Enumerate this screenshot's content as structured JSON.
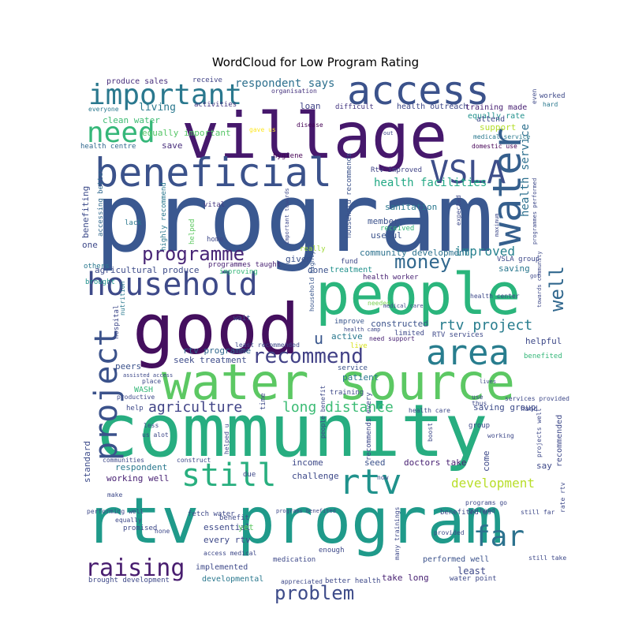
{
  "chart_data": {
    "type": "wordcloud",
    "title": "WordCloud for Low Program Rating",
    "background": "#ffffff",
    "colormap": "viridis",
    "words": [
      {
        "text": "program",
        "size": 120,
        "color": "#3a5890"
      },
      {
        "text": "community",
        "size": 92,
        "color": "#27ad80"
      },
      {
        "text": "good",
        "size": 88,
        "color": "#440f5e"
      },
      {
        "text": "village",
        "size": 80,
        "color": "#46186c"
      },
      {
        "text": "rtv program",
        "size": 80,
        "color": "#1f9a8a"
      },
      {
        "text": "people",
        "size": 72,
        "color": "#2ab57c"
      },
      {
        "text": "water source",
        "size": 62,
        "color": "#5cc863"
      },
      {
        "text": "beneficial",
        "size": 50,
        "color": "#3b528b"
      },
      {
        "text": "access",
        "size": 50,
        "color": "#3b528b"
      },
      {
        "text": "water",
        "size": 50,
        "color": "#355f8d"
      },
      {
        "text": "household",
        "size": 40,
        "color": "#3e4a89"
      },
      {
        "text": "area",
        "size": 44,
        "color": "#287d8e"
      },
      {
        "text": "important",
        "size": 36,
        "color": "#2a788e"
      },
      {
        "text": "need",
        "size": 36,
        "color": "#35b779"
      },
      {
        "text": "VSLA",
        "size": 40,
        "color": "#3d4e8a"
      },
      {
        "text": "project",
        "size": 40,
        "color": "#3b528b"
      },
      {
        "text": "still",
        "size": 40,
        "color": "#29af7f"
      },
      {
        "text": "rtv",
        "size": 44,
        "color": "#20928c"
      },
      {
        "text": "far",
        "size": 36,
        "color": "#2c728e"
      },
      {
        "text": "raising",
        "size": 30,
        "color": "#481d6f"
      },
      {
        "text": "problem",
        "size": 24,
        "color": "#3e4c8a"
      },
      {
        "text": "recommend",
        "size": 26,
        "color": "#424186"
      },
      {
        "text": "programme",
        "size": 24,
        "color": "#482576"
      },
      {
        "text": "money",
        "size": 24,
        "color": "#31688e"
      },
      {
        "text": "well",
        "size": 24,
        "color": "#31688e"
      },
      {
        "text": "agriculture",
        "size": 18,
        "color": "#414487"
      },
      {
        "text": "long distance",
        "size": 18,
        "color": "#3cbc75"
      },
      {
        "text": "rtv project",
        "size": 18,
        "color": "#287d8e"
      },
      {
        "text": "development",
        "size": 16,
        "color": "#b8de29"
      },
      {
        "text": "health service",
        "size": 14,
        "color": "#2d708e"
      },
      {
        "text": "health facilities",
        "size": 14,
        "color": "#22a884"
      },
      {
        "text": "improved",
        "size": 16,
        "color": "#26818e"
      },
      {
        "text": "respondent says",
        "size": 14,
        "color": "#2d708e"
      },
      {
        "text": "living",
        "size": 13,
        "color": "#2a788e"
      },
      {
        "text": "clean water",
        "size": 11,
        "color": "#3fbc73"
      },
      {
        "text": "equally important",
        "size": 11,
        "color": "#56c667"
      },
      {
        "text": "u",
        "size": 20,
        "color": "#39568c"
      },
      {
        "text": "produce sales",
        "size": 10,
        "color": "#472d7b"
      },
      {
        "text": "receive",
        "size": 9,
        "color": "#414487"
      },
      {
        "text": "organisation",
        "size": 8,
        "color": "#46337e"
      },
      {
        "text": "loan",
        "size": 11,
        "color": "#414487"
      },
      {
        "text": "difficult",
        "size": 9,
        "color": "#453781"
      },
      {
        "text": "health outreach",
        "size": 10,
        "color": "#3e4989"
      },
      {
        "text": "training made",
        "size": 10,
        "color": "#482173"
      },
      {
        "text": "equally rate",
        "size": 10,
        "color": "#21918c"
      },
      {
        "text": "support",
        "size": 11,
        "color": "#b5de2b"
      },
      {
        "text": "worked",
        "size": 9,
        "color": "#3e4989"
      },
      {
        "text": "hard",
        "size": 8,
        "color": "#2a788e"
      },
      {
        "text": "everyone",
        "size": 8,
        "color": "#2a788e"
      },
      {
        "text": "activities",
        "size": 9,
        "color": "#453781"
      },
      {
        "text": "gave us",
        "size": 8,
        "color": "#fde725"
      },
      {
        "text": "disease",
        "size": 8,
        "color": "#440154"
      },
      {
        "text": "medical service",
        "size": 8,
        "color": "#2a788e"
      },
      {
        "text": "domestic use",
        "size": 8,
        "color": "#440154"
      },
      {
        "text": "health centre",
        "size": 9,
        "color": "#31688e"
      },
      {
        "text": "save",
        "size": 11,
        "color": "#472d7b"
      },
      {
        "text": "hygiene",
        "size": 9,
        "color": "#440154"
      },
      {
        "text": "Rtv improved",
        "size": 9,
        "color": "#414487"
      },
      {
        "text": "household recommends",
        "size": 9,
        "color": "#3b528b"
      },
      {
        "text": "sanitation",
        "size": 11,
        "color": "#2a788e"
      },
      {
        "text": "member",
        "size": 11,
        "color": "#3b528b"
      },
      {
        "text": "received",
        "size": 9,
        "color": "#35b779"
      },
      {
        "text": "useful",
        "size": 11,
        "color": "#3b528b"
      },
      {
        "text": "community development",
        "size": 11,
        "color": "#2c728e"
      },
      {
        "text": "benefiting",
        "size": 11,
        "color": "#3e4c8a"
      },
      {
        "text": "accessing better",
        "size": 9,
        "color": "#31688e"
      },
      {
        "text": "highly recommend",
        "size": 9,
        "color": "#2a788e"
      },
      {
        "text": "helped",
        "size": 9,
        "color": "#5ec962"
      },
      {
        "text": "vital",
        "size": 9,
        "color": "#453781"
      },
      {
        "text": "lack",
        "size": 9,
        "color": "#2a788e"
      },
      {
        "text": "home",
        "size": 9,
        "color": "#3e4989"
      },
      {
        "text": "one",
        "size": 11,
        "color": "#3e4989"
      },
      {
        "text": "programmes taught",
        "size": 9,
        "color": "#482173"
      },
      {
        "text": "improving",
        "size": 9,
        "color": "#35b779"
      },
      {
        "text": "really",
        "size": 9,
        "color": "#a0da39"
      },
      {
        "text": "agricultural produce",
        "size": 11,
        "color": "#3e4c8a"
      },
      {
        "text": "given",
        "size": 11,
        "color": "#3b528b"
      },
      {
        "text": "done",
        "size": 11,
        "color": "#3b528b"
      },
      {
        "text": "fund",
        "size": 9,
        "color": "#3e4989"
      },
      {
        "text": "treatment",
        "size": 10,
        "color": "#21918c"
      },
      {
        "text": "saving",
        "size": 11,
        "color": "#2a788e"
      },
      {
        "text": "VSLA group",
        "size": 9,
        "color": "#3e4989"
      },
      {
        "text": "health worker",
        "size": 9,
        "color": "#482173"
      },
      {
        "text": "health center",
        "size": 8,
        "color": "#3e4989"
      },
      {
        "text": "others",
        "size": 9,
        "color": "#2a788e"
      },
      {
        "text": "brought",
        "size": 9,
        "color": "#21918c"
      },
      {
        "text": "nutrition",
        "size": 8,
        "color": "#2a788e"
      },
      {
        "text": "hospital",
        "size": 9,
        "color": "#3e4989"
      },
      {
        "text": "wait",
        "size": 9,
        "color": "#3b528b"
      },
      {
        "text": "household highly",
        "size": 8,
        "color": "#39568c"
      },
      {
        "text": "improve",
        "size": 9,
        "color": "#39568c"
      },
      {
        "text": "constructed",
        "size": 11,
        "color": "#3b528b"
      },
      {
        "text": "needed",
        "size": 8,
        "color": "#7ad151"
      },
      {
        "text": "active",
        "size": 11,
        "color": "#2a788e"
      },
      {
        "text": "limited",
        "size": 9,
        "color": "#3e4989"
      },
      {
        "text": "RTV services",
        "size": 9,
        "color": "#3e4989"
      },
      {
        "text": "need support",
        "size": 8,
        "color": "#482173"
      },
      {
        "text": "live",
        "size": 9,
        "color": "#d8e219"
      },
      {
        "text": "helpful",
        "size": 11,
        "color": "#3e4989"
      },
      {
        "text": "benefited",
        "size": 9,
        "color": "#35b779"
      },
      {
        "text": "rtv programme",
        "size": 11,
        "color": "#31688e"
      },
      {
        "text": "seek treatment",
        "size": 11,
        "color": "#3e4c8a"
      },
      {
        "text": "peers",
        "size": 11,
        "color": "#3b528b"
      },
      {
        "text": "patient",
        "size": 11,
        "color": "#2a788e"
      },
      {
        "text": "service",
        "size": 9,
        "color": "#3b528b"
      },
      {
        "text": "training",
        "size": 9,
        "color": "#3e4989"
      },
      {
        "text": "WASH",
        "size": 10,
        "color": "#35b779"
      },
      {
        "text": "productive",
        "size": 8,
        "color": "#3e4989"
      },
      {
        "text": "help",
        "size": 9,
        "color": "#3e4989"
      },
      {
        "text": "saving group",
        "size": 11,
        "color": "#3e4c8a"
      },
      {
        "text": "hand",
        "size": 9,
        "color": "#3e4989"
      },
      {
        "text": "standard",
        "size": 11,
        "color": "#3e4c8a"
      },
      {
        "text": "respondent",
        "size": 11,
        "color": "#2a788e"
      },
      {
        "text": "working well",
        "size": 11,
        "color": "#482173"
      },
      {
        "text": "income",
        "size": 11,
        "color": "#3e4989"
      },
      {
        "text": "seed",
        "size": 11,
        "color": "#3b528b"
      },
      {
        "text": "doctors take",
        "size": 11,
        "color": "#482173"
      },
      {
        "text": "come",
        "size": 11,
        "color": "#3e4989"
      },
      {
        "text": "challenge",
        "size": 11,
        "color": "#3e4989"
      },
      {
        "text": "say",
        "size": 11,
        "color": "#3e4989"
      },
      {
        "text": "recommended",
        "size": 10,
        "color": "#3e4989"
      },
      {
        "text": "essential",
        "size": 11,
        "color": "#3e4989"
      },
      {
        "text": "yet",
        "size": 11,
        "color": "#5ec962"
      },
      {
        "text": "every rtv",
        "size": 11,
        "color": "#3e4989"
      },
      {
        "text": "implemented",
        "size": 10,
        "color": "#3e4989"
      },
      {
        "text": "developmental",
        "size": 10,
        "color": "#2a788e"
      },
      {
        "text": "performed well",
        "size": 10,
        "color": "#3b528b"
      },
      {
        "text": "least",
        "size": 12,
        "color": "#3e4989"
      },
      {
        "text": "take long",
        "size": 11,
        "color": "#482173"
      },
      {
        "text": "water point",
        "size": 9,
        "color": "#3e4989"
      },
      {
        "text": "better health",
        "size": 9,
        "color": "#3e4989"
      },
      {
        "text": "appreciated",
        "size": 8,
        "color": "#3e4989"
      },
      {
        "text": "brought development",
        "size": 9,
        "color": "#3e4989"
      },
      {
        "text": "medication",
        "size": 9,
        "color": "#3e4989"
      },
      {
        "text": "access medical",
        "size": 8,
        "color": "#3e4989"
      },
      {
        "text": "benefit",
        "size": 9,
        "color": "#3e4989"
      },
      {
        "text": "fetch water",
        "size": 9,
        "color": "#3e4989"
      },
      {
        "text": "promised",
        "size": 9,
        "color": "#3e4989"
      },
      {
        "text": "performing well",
        "size": 8,
        "color": "#3e4989"
      },
      {
        "text": "communities",
        "size": 8,
        "color": "#3e4989"
      },
      {
        "text": "construct",
        "size": 8,
        "color": "#3e4989"
      },
      {
        "text": "due",
        "size": 9,
        "color": "#3e4989"
      },
      {
        "text": "enough",
        "size": 9,
        "color": "#3e4989"
      },
      {
        "text": "benefited us",
        "size": 9,
        "color": "#3e4989"
      },
      {
        "text": "provided",
        "size": 8,
        "color": "#3e4989"
      },
      {
        "text": "still far",
        "size": 8,
        "color": "#3e4989"
      },
      {
        "text": "still take",
        "size": 8,
        "color": "#3e4989"
      },
      {
        "text": "group",
        "size": 9,
        "color": "#3e4989"
      },
      {
        "text": "services provided",
        "size": 8,
        "color": "#3e4989"
      },
      {
        "text": "health care",
        "size": 8,
        "color": "#3e4989"
      },
      {
        "text": "us alot",
        "size": 8,
        "color": "#3e4989"
      },
      {
        "text": "less",
        "size": 8,
        "color": "#3e4989"
      },
      {
        "text": "time",
        "size": 9,
        "color": "#3e4989"
      },
      {
        "text": "make",
        "size": 8,
        "color": "#3e4989"
      },
      {
        "text": "none",
        "size": 8,
        "color": "#3e4989"
      },
      {
        "text": "equally",
        "size": 8,
        "color": "#3e4989"
      },
      {
        "text": "place",
        "size": 8,
        "color": "#3e4989"
      },
      {
        "text": "thus",
        "size": 8,
        "color": "#3e4989"
      },
      {
        "text": "use",
        "size": 8,
        "color": "#3e4989"
      },
      {
        "text": "even",
        "size": 8,
        "color": "#3e4989"
      },
      {
        "text": "now",
        "size": 8,
        "color": "#3e4989"
      },
      {
        "text": "attend",
        "size": 10,
        "color": "#3e4989"
      },
      {
        "text": "expected",
        "size": 8,
        "color": "#3e4989"
      },
      {
        "text": "maximum",
        "size": 7,
        "color": "#3e4989"
      },
      {
        "text": "boost",
        "size": 8,
        "color": "#3e4989"
      },
      {
        "text": "people benefit",
        "size": 8,
        "color": "#3e4989"
      },
      {
        "text": "recommends every",
        "size": 9,
        "color": "#3e4989"
      },
      {
        "text": "projects well",
        "size": 8,
        "color": "#3e4989"
      },
      {
        "text": "rate rtv",
        "size": 8,
        "color": "#3e4989"
      },
      {
        "text": "towards community",
        "size": 7,
        "color": "#3e4989"
      },
      {
        "text": "programs go",
        "size": 8,
        "color": "#3e4989"
      },
      {
        "text": "go hand",
        "size": 8,
        "color": "#3e4989"
      },
      {
        "text": "programs benefited",
        "size": 7,
        "color": "#3e4989"
      },
      {
        "text": "many trainings",
        "size": 8,
        "color": "#3e4989"
      },
      {
        "text": "helped u",
        "size": 8,
        "color": "#3e4989"
      },
      {
        "text": "least recommended",
        "size": 8,
        "color": "#3e4989"
      },
      {
        "text": "assisted access",
        "size": 7,
        "color": "#3e4989"
      },
      {
        "text": "important towards",
        "size": 7,
        "color": "#3e4989"
      },
      {
        "text": "programmes performed",
        "size": 7,
        "color": "#3e4989"
      },
      {
        "text": "health camp",
        "size": 7,
        "color": "#3e4989"
      },
      {
        "text": "medical care",
        "size": 7,
        "color": "#3e4989"
      },
      {
        "text": "working",
        "size": 8,
        "color": "#3e4989"
      },
      {
        "text": "got",
        "size": 7,
        "color": "#3e4989"
      },
      {
        "text": "lives",
        "size": 7,
        "color": "#3e4989"
      },
      {
        "text": "out",
        "size": 7,
        "color": "#3e4989"
      }
    ]
  }
}
